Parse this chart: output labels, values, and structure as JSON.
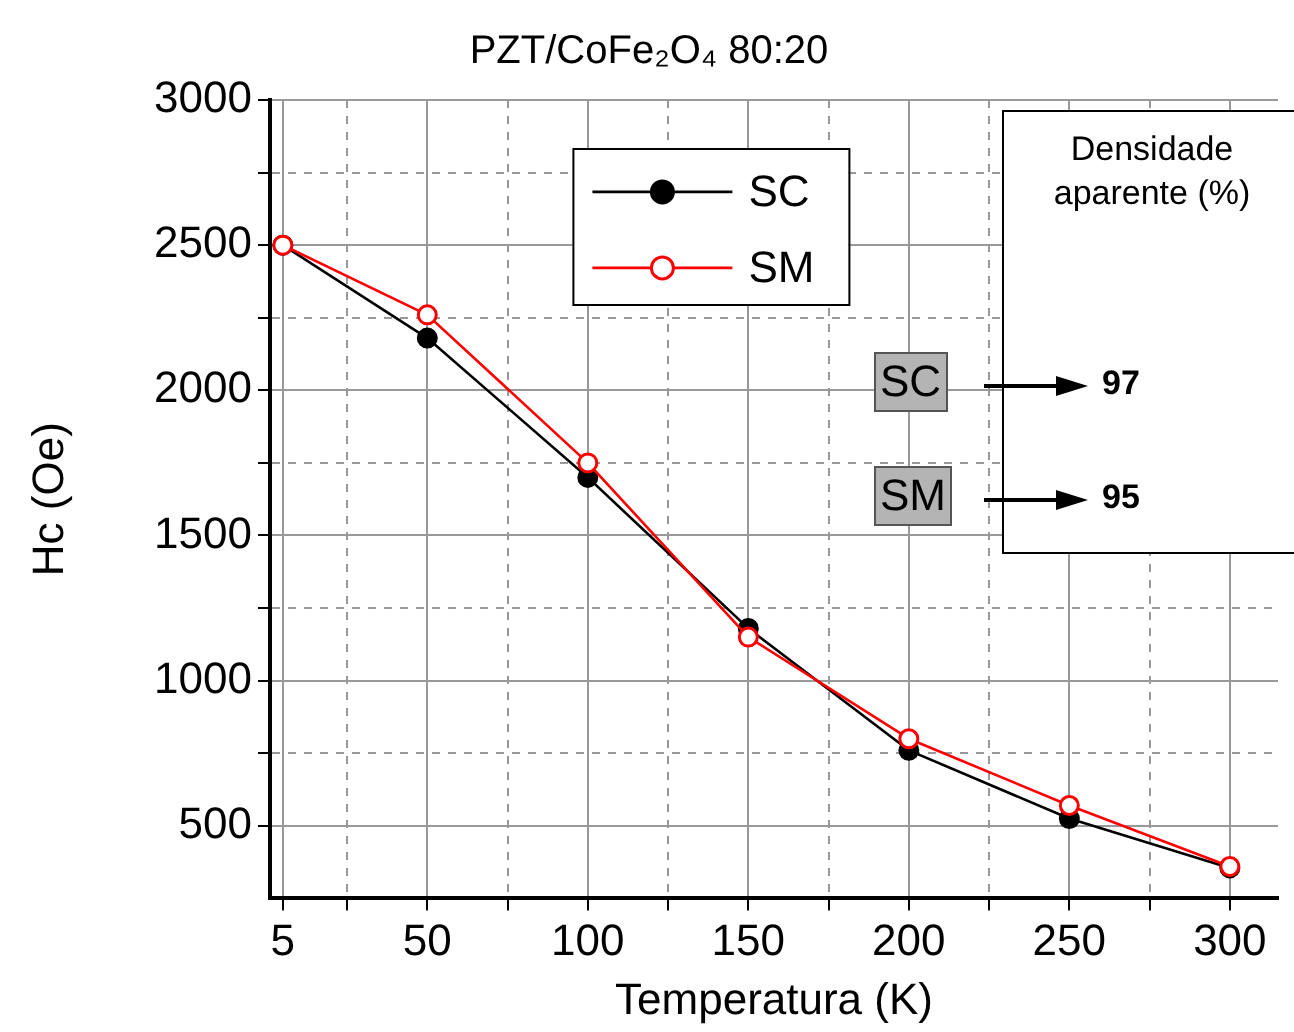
{
  "chart_data": {
    "type": "line",
    "title": "PZT/CoFe₂O₄ 80:20",
    "xlabel": "Temperatura (K)",
    "ylabel": "Hc (Oe)",
    "x": [
      5,
      50,
      100,
      150,
      200,
      250,
      300
    ],
    "series": [
      {
        "name": "SC",
        "color": "#000000",
        "values": [
          2500,
          2180,
          1700,
          1180,
          760,
          525,
          355
        ]
      },
      {
        "name": "SM",
        "color": "#ff0000",
        "values": [
          2500,
          2260,
          1750,
          1150,
          800,
          570,
          360
        ]
      }
    ],
    "xlim": [
      1,
      315
    ],
    "xticks": [
      5,
      {
        "value": 25,
        "label": null
      },
      50,
      {
        "value": 75,
        "label": null
      },
      100,
      {
        "value": 125,
        "label": null
      },
      150,
      {
        "value": 175,
        "label": null
      },
      200,
      {
        "value": 225,
        "label": null
      },
      250,
      {
        "value": 275,
        "label": null
      },
      300
    ],
    "ylim": [
      250,
      3000
    ],
    "yticks": [
      500,
      {
        "value": 750,
        "label": null
      },
      1000,
      {
        "value": 1250,
        "label": null
      },
      1500,
      {
        "value": 1750,
        "label": null
      },
      2000,
      {
        "value": 2250,
        "label": null
      },
      2500,
      {
        "value": 2750,
        "label": null
      },
      3000
    ],
    "grid": true,
    "legend": "top",
    "marker": "circle",
    "line_style": "solid",
    "annotations": [
      "Densidade aparente (%)",
      "SC",
      "97",
      "SM",
      "95"
    ]
  }
}
